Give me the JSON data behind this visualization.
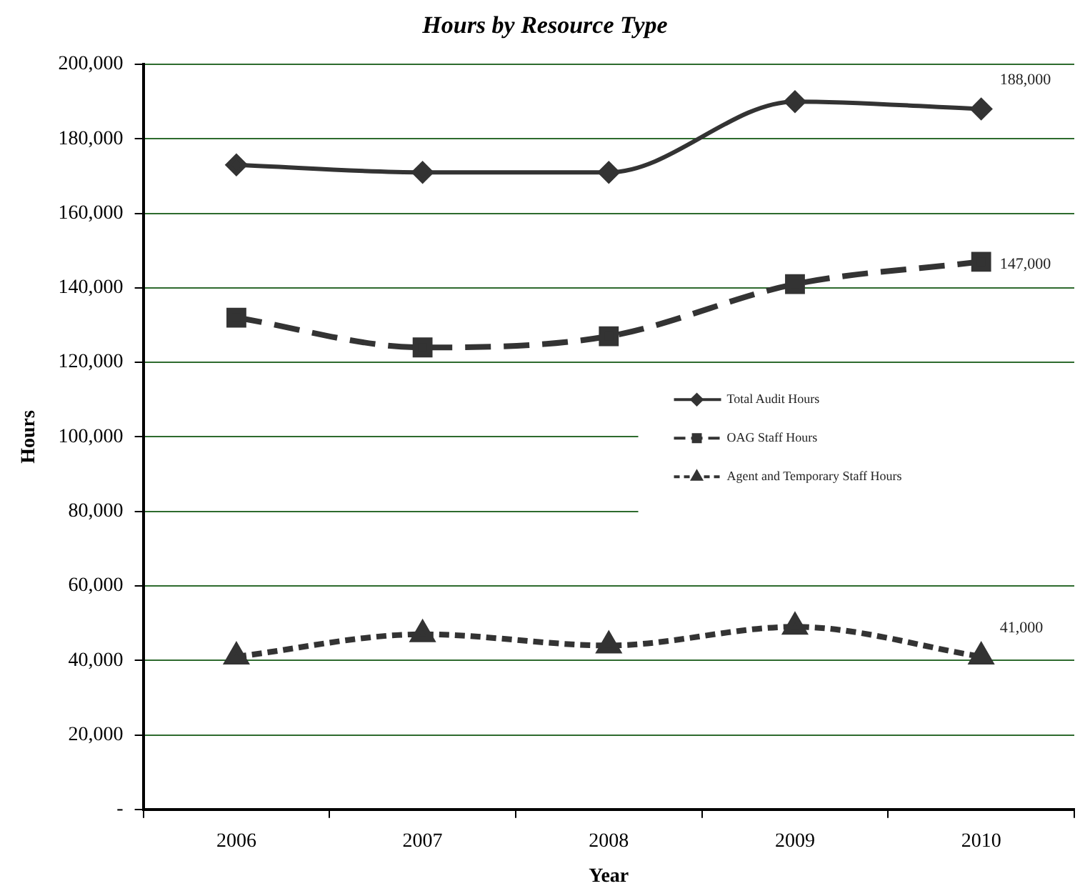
{
  "chart_data": {
    "type": "line",
    "title": "Hours by Resource Type",
    "xlabel": "Year",
    "ylabel": "Hours",
    "categories": [
      "2006",
      "2007",
      "2008",
      "2009",
      "2010"
    ],
    "series": [
      {
        "name": "Total Audit Hours",
        "color": "#333333",
        "marker": "diamond",
        "line_style": "solid",
        "values": [
          173000,
          171000,
          171000,
          190000,
          188000
        ],
        "value_labels": [
          null,
          null,
          null,
          null,
          "188,000"
        ]
      },
      {
        "name": "OAG Staff Hours",
        "color": "#333333",
        "marker": "square",
        "line_style": "dashed",
        "values": [
          132000,
          124000,
          127000,
          141000,
          147000
        ],
        "value_labels": [
          null,
          null,
          null,
          null,
          "147,000"
        ]
      },
      {
        "name": "Agent and Temporary Staff Hours",
        "color": "#333333",
        "marker": "triangle",
        "line_style": "dotted",
        "values": [
          41000,
          47000,
          44000,
          49000,
          41000
        ],
        "value_labels": [
          null,
          null,
          null,
          null,
          "41,000"
        ]
      }
    ],
    "ylim": [
      0,
      200000
    ],
    "yticks": [
      {
        "value": 0,
        "label": "-"
      },
      {
        "value": 20000,
        "label": "20,000"
      },
      {
        "value": 40000,
        "label": "40,000"
      },
      {
        "value": 60000,
        "label": "60,000"
      },
      {
        "value": 80000,
        "label": "80,000"
      },
      {
        "value": 100000,
        "label": "100,000"
      },
      {
        "value": 120000,
        "label": "120,000"
      },
      {
        "value": 140000,
        "label": "140,000"
      },
      {
        "value": 160000,
        "label": "160,000"
      },
      {
        "value": 180000,
        "label": "180,000"
      },
      {
        "value": 200000,
        "label": "200,000"
      }
    ],
    "grid": "y",
    "legend": "right"
  }
}
